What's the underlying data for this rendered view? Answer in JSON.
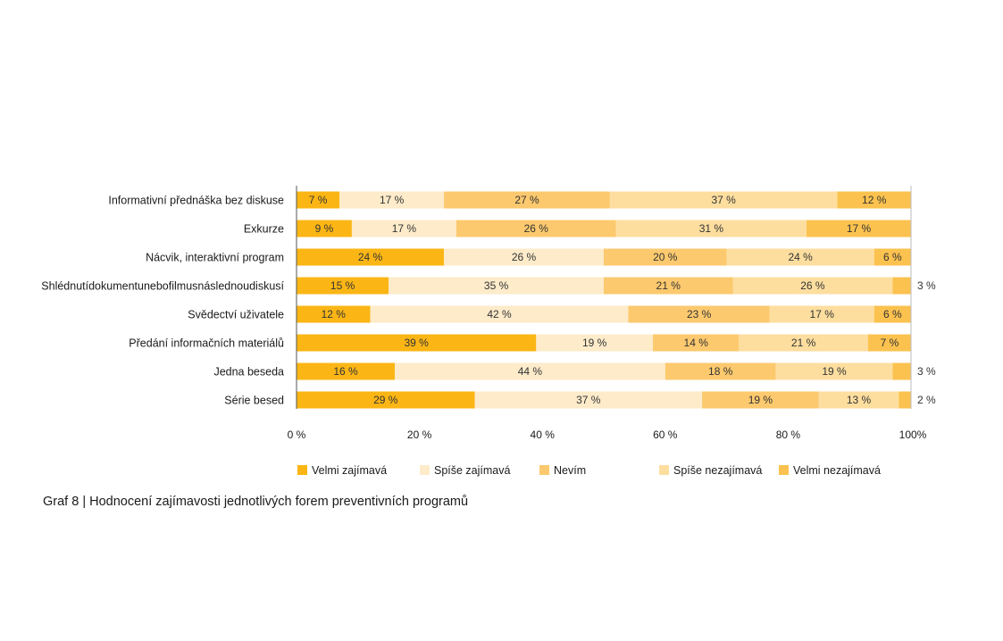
{
  "caption": "Graf 8 | Hodnocení zajímavosti jednotlivých forem preventivních programů",
  "chart_data": {
    "type": "bar",
    "orientation": "horizontal",
    "stacked": true,
    "percent": true,
    "categories": [
      "Informativní přednáška bez diskuse",
      "Exkurze",
      "Nácvik, interaktivní program",
      "Shlédnutídokumentunebofilmusnáslednoudiskusí",
      "Svědectví uživatele",
      "Předání informačních materiálů",
      "Jedna beseda",
      "Série besed"
    ],
    "series": [
      {
        "name": "Velmi zajímavá",
        "color": "#fbb615",
        "values": [
          7,
          9,
          24,
          15,
          12,
          39,
          16,
          29
        ]
      },
      {
        "name": "Spíše zajímavá",
        "color": "#fdebca",
        "values": [
          17,
          17,
          26,
          35,
          42,
          19,
          44,
          37
        ]
      },
      {
        "name": "Nevím",
        "color": "#fcc96e",
        "values": [
          27,
          26,
          20,
          21,
          23,
          14,
          18,
          19
        ]
      },
      {
        "name": "Spíše nezajímavá",
        "color": "#fdde9f",
        "values": [
          37,
          31,
          24,
          26,
          17,
          21,
          19,
          13
        ]
      },
      {
        "name": "Velmi nezajímavá",
        "color": "#fbc24f",
        "values": [
          12,
          17,
          6,
          3,
          6,
          7,
          3,
          2
        ]
      }
    ],
    "segment_labels": [
      [
        "7 %",
        "17 %",
        "27 %",
        "37 %",
        "12 %"
      ],
      [
        "9 %",
        "17 %",
        "26 %",
        "31 %",
        "17 %"
      ],
      [
        "24 %",
        "26 %",
        "20 %",
        "24 %",
        "6 %"
      ],
      [
        "15 %",
        "35 %",
        "21 %",
        "26 %",
        "3 %"
      ],
      [
        "12 %",
        "42 %",
        "23 %",
        "17 %",
        "6 %"
      ],
      [
        "39 %",
        "19 %",
        "14 %",
        "21 %",
        "7 %"
      ],
      [
        "16 %",
        "44 %",
        "18 %",
        "19 %",
        "3 %"
      ],
      [
        "29 %",
        "37 %",
        "19 %",
        "13 %",
        "2 %"
      ]
    ],
    "xlim": [
      0,
      100
    ],
    "xticks": [
      0,
      20,
      40,
      60,
      80,
      100
    ],
    "xtick_labels": [
      "0 %",
      "20 %",
      "40 %",
      "60 %",
      "80 %",
      "100%"
    ],
    "title": "",
    "xlabel": "",
    "ylabel": "",
    "grid": false,
    "legend_position": "bottom"
  }
}
